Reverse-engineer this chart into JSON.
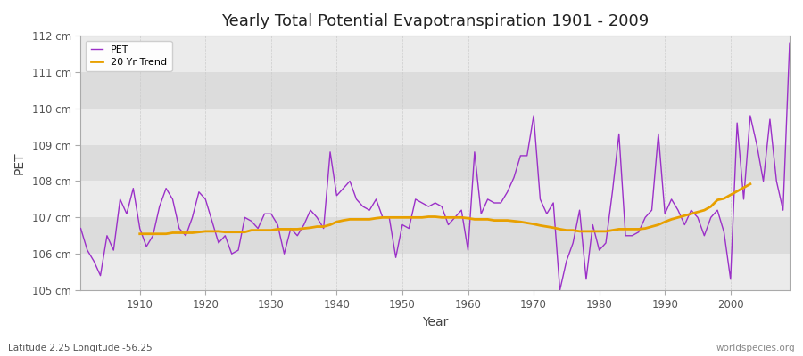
{
  "title": "Yearly Total Potential Evapotranspiration 1901 - 2009",
  "xlabel": "Year",
  "ylabel": "PET",
  "subtitle": "Latitude 2.25 Longitude -56.25",
  "watermark": "worldspecies.org",
  "ylim": [
    105,
    112
  ],
  "yticks": [
    105,
    106,
    107,
    108,
    109,
    110,
    111,
    112
  ],
  "ytick_labels": [
    "105 cm",
    "106 cm",
    "107 cm",
    "108 cm",
    "109 cm",
    "110 cm",
    "111 cm",
    "112 cm"
  ],
  "xlim": [
    1901,
    2009
  ],
  "xticks": [
    1910,
    1920,
    1930,
    1940,
    1950,
    1960,
    1970,
    1980,
    1990,
    2000
  ],
  "pet_color": "#9b30c8",
  "trend_color": "#e8a000",
  "fig_bg_color": "#ffffff",
  "plot_bg_color": "#e8e8e8",
  "band_color_light": "#ebebeb",
  "band_color_dark": "#dcdcdc",
  "grid_color": "#ffffff",
  "legend_labels": [
    "PET",
    "20 Yr Trend"
  ],
  "years": [
    1901,
    1902,
    1903,
    1904,
    1905,
    1906,
    1907,
    1908,
    1909,
    1910,
    1911,
    1912,
    1913,
    1914,
    1915,
    1916,
    1917,
    1918,
    1919,
    1920,
    1921,
    1922,
    1923,
    1924,
    1925,
    1926,
    1927,
    1928,
    1929,
    1930,
    1931,
    1932,
    1933,
    1934,
    1935,
    1936,
    1937,
    1938,
    1939,
    1940,
    1941,
    1942,
    1943,
    1944,
    1945,
    1946,
    1947,
    1948,
    1949,
    1950,
    1951,
    1952,
    1953,
    1954,
    1955,
    1956,
    1957,
    1958,
    1959,
    1960,
    1961,
    1962,
    1963,
    1964,
    1965,
    1966,
    1967,
    1968,
    1969,
    1970,
    1971,
    1972,
    1973,
    1974,
    1975,
    1976,
    1977,
    1978,
    1979,
    1980,
    1981,
    1982,
    1983,
    1984,
    1985,
    1986,
    1987,
    1988,
    1989,
    1990,
    1991,
    1992,
    1993,
    1994,
    1995,
    1996,
    1997,
    1998,
    1999,
    2000,
    2001,
    2002,
    2003,
    2004,
    2005,
    2006,
    2007,
    2008,
    2009
  ],
  "pet_values": [
    106.7,
    106.1,
    105.8,
    105.4,
    106.5,
    106.1,
    107.5,
    107.1,
    107.8,
    106.7,
    106.2,
    106.5,
    107.3,
    107.8,
    107.5,
    106.7,
    106.5,
    107.0,
    107.7,
    107.5,
    106.9,
    106.3,
    106.5,
    106.0,
    106.1,
    107.0,
    106.9,
    106.7,
    107.1,
    107.1,
    106.8,
    106.0,
    106.7,
    106.5,
    106.8,
    107.2,
    107.0,
    106.7,
    108.8,
    107.6,
    107.8,
    108.0,
    107.5,
    107.3,
    107.2,
    107.5,
    107.0,
    107.0,
    105.9,
    106.8,
    106.7,
    107.5,
    107.4,
    107.3,
    107.4,
    107.3,
    106.8,
    107.0,
    107.2,
    106.1,
    108.8,
    107.1,
    107.5,
    107.4,
    107.4,
    107.7,
    108.1,
    108.7,
    108.7,
    109.8,
    107.5,
    107.1,
    107.4,
    105.0,
    105.8,
    106.3,
    107.2,
    105.3,
    106.8,
    106.1,
    106.3,
    107.7,
    109.3,
    106.5,
    106.5,
    106.6,
    107.0,
    107.2,
    109.3,
    107.1,
    107.5,
    107.2,
    106.8,
    107.2,
    107.0,
    106.5,
    107.0,
    107.2,
    106.6,
    105.3,
    109.6,
    107.5,
    109.8,
    109.0,
    108.0,
    109.7,
    108.0,
    107.2,
    111.8
  ],
  "trend_values": [
    null,
    null,
    null,
    null,
    null,
    null,
    null,
    null,
    null,
    106.55,
    106.55,
    106.55,
    106.55,
    106.55,
    106.58,
    106.58,
    106.58,
    106.58,
    106.6,
    106.62,
    106.62,
    106.62,
    106.6,
    106.6,
    106.6,
    106.6,
    106.65,
    106.65,
    106.65,
    106.65,
    106.68,
    106.68,
    106.68,
    106.68,
    106.7,
    106.72,
    106.75,
    106.75,
    106.8,
    106.88,
    106.92,
    106.95,
    106.95,
    106.95,
    106.95,
    106.98,
    107.0,
    107.0,
    107.0,
    107.0,
    107.0,
    107.0,
    107.0,
    107.02,
    107.02,
    107.0,
    107.0,
    107.0,
    107.0,
    106.98,
    106.95,
    106.95,
    106.95,
    106.92,
    106.92,
    106.92,
    106.9,
    106.88,
    106.85,
    106.82,
    106.78,
    106.75,
    106.72,
    106.68,
    106.65,
    106.65,
    106.62,
    106.62,
    106.62,
    106.62,
    106.62,
    106.65,
    106.68,
    106.68,
    106.68,
    106.68,
    106.7,
    106.75,
    106.8,
    106.88,
    106.95,
    107.0,
    107.05,
    107.1,
    107.15,
    107.2,
    107.3,
    107.48,
    107.52,
    107.62,
    107.72,
    107.82,
    107.92,
    null,
    null,
    null,
    null,
    null,
    null
  ]
}
